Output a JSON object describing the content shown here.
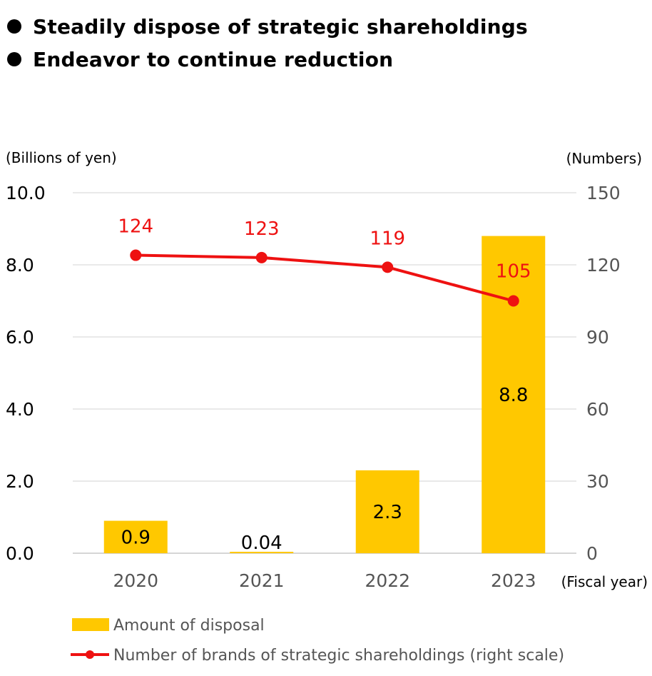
{
  "bullets": [
    "Steadily dispose of strategic shareholdings",
    "Endeavor to continue reduction"
  ],
  "chart_data": {
    "type": "bar",
    "categories": [
      "2020",
      "2021",
      "2022",
      "2023"
    ],
    "series": [
      {
        "name": "Amount of disposal",
        "type": "bar",
        "axis": "left",
        "values": [
          0.9,
          0.04,
          2.3,
          8.8
        ],
        "labels": [
          "0.9",
          "0.04",
          "2.3",
          "8.8"
        ],
        "color": "#FFC800"
      },
      {
        "name": "Number of brands of strategic shareholdings (right scale)",
        "type": "line",
        "axis": "right",
        "values": [
          124,
          123,
          119,
          105
        ],
        "labels": [
          "124",
          "123",
          "119",
          "105"
        ],
        "color": "#EE1111"
      }
    ],
    "ylabel_left": "(Billions of yen)",
    "ylabel_right": "(Numbers)",
    "xlabel": "(Fiscal year)",
    "ylim_left": [
      0,
      10
    ],
    "ylim_right": [
      0,
      150
    ],
    "yticks_left": [
      "0.0",
      "2.0",
      "4.0",
      "6.0",
      "8.0",
      "10.0"
    ],
    "yticks_right": [
      "0",
      "30",
      "60",
      "90",
      "120",
      "150"
    ],
    "grid": true,
    "legend_position": "bottom-left"
  }
}
